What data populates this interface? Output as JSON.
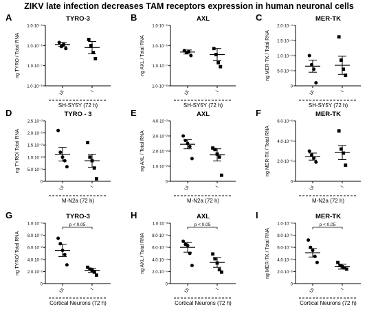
{
  "figure_title": "ZIKV late infection decreases TAM receptors expression in human neuronal cells",
  "chart_data": [
    {
      "type": "scatter",
      "panel_letter": "A",
      "title": "TYRO-3",
      "ylabel": "ng TYRO / Total RNA",
      "yscale": "log",
      "yticks": [
        "1.0·10⁻⁵",
        "1.0·10⁻⁶",
        "1.0·10⁻⁷",
        "1.0·10⁻⁸"
      ],
      "ylim": [
        -8,
        -5
      ],
      "categories": [
        "UI",
        "I"
      ],
      "group_label": "SH-SY5Y (72 h)",
      "series": [
        {
          "category": "UI",
          "points": [
            -5.85,
            -6.05,
            -5.95,
            -6.15
          ],
          "mean": -5.95,
          "err": 0.1
        },
        {
          "category": "I",
          "points": [
            -5.7,
            -6.0,
            -6.35,
            -6.65
          ],
          "mean": -6.1,
          "err": 0.3
        }
      ]
    },
    {
      "type": "scatter",
      "panel_letter": "B",
      "title": "AXL",
      "ylabel": "ng AXL / Total RNA",
      "yscale": "log",
      "yticks": [
        "1.0·10⁻⁵",
        "1.0·10⁻⁶",
        "1.0·10⁻⁷",
        "1.0·10⁻⁸"
      ],
      "ylim": [
        -8,
        -5
      ],
      "categories": [
        "UI",
        "I"
      ],
      "group_label": "SH-SY5Y (72 h)",
      "series": [
        {
          "category": "UI",
          "points": [
            -6.25,
            -6.35,
            -6.3,
            -6.5
          ],
          "mean": -6.32,
          "err": 0.1
        },
        {
          "category": "I",
          "points": [
            -6.15,
            -6.45,
            -6.85,
            -7.05
          ],
          "mean": -6.45,
          "err": 0.3
        }
      ]
    },
    {
      "type": "scatter",
      "panel_letter": "C",
      "title": "MER-TK",
      "ylabel": "ng MER-TK / Total RNA",
      "yticks": [
        "2.0·10⁻⁴",
        "1.5·10⁻⁴",
        "1.0·10⁻⁴",
        "5.0·10⁻⁵",
        "0"
      ],
      "ylim": [
        0,
        2.0
      ],
      "categories": [
        "UI",
        "I"
      ],
      "group_label": "SH-SY5Y (72 h)",
      "series": [
        {
          "category": "UI",
          "points": [
            1.0,
            0.7,
            0.55,
            0.1
          ],
          "mean": 0.65,
          "err": 0.2
        },
        {
          "category": "I",
          "points": [
            1.62,
            0.85,
            0.55,
            0.35
          ],
          "mean": 0.68,
          "err": 0.3
        }
      ]
    },
    {
      "type": "scatter",
      "panel_letter": "D",
      "title": "TYRO - 3",
      "ylabel": "ng TYRO/ Total RNA",
      "yticks": [
        "2.5·10⁻²",
        "2.0·10⁻²",
        "1.5·10⁻²",
        "1.0·10⁻²",
        "5.0·10⁻³",
        "0"
      ],
      "ylim": [
        0,
        2.5
      ],
      "categories": [
        "UI",
        "I"
      ],
      "group_label": "M-N2a (72 h)",
      "series": [
        {
          "category": "UI",
          "points": [
            2.1,
            1.2,
            1.0,
            0.85,
            0.6
          ],
          "mean": 1.12,
          "err": 0.28
        },
        {
          "category": "I",
          "points": [
            1.6,
            1.0,
            0.85,
            0.55,
            0.1
          ],
          "mean": 0.85,
          "err": 0.27
        }
      ]
    },
    {
      "type": "scatter",
      "panel_letter": "E",
      "title": "AXL",
      "ylabel": "ng AXL / Total RNA",
      "yticks": [
        "4.0·10⁻²",
        "3.0·10⁻²",
        "2.0·10⁻²",
        "1.0·10⁻²",
        "0"
      ],
      "ylim": [
        0,
        4.0
      ],
      "categories": [
        "UI",
        "I"
      ],
      "group_label": "M-N2a (72 h)",
      "series": [
        {
          "category": "UI",
          "points": [
            3.0,
            2.7,
            2.5,
            2.3,
            1.5
          ],
          "mean": 2.45,
          "err": 0.3
        },
        {
          "category": "I",
          "points": [
            2.2,
            2.1,
            1.8,
            1.6,
            0.4
          ],
          "mean": 1.75,
          "err": 0.4
        }
      ]
    },
    {
      "type": "scatter",
      "panel_letter": "F",
      "title": "MER-TK",
      "ylabel": "ng MER-TK / Total RNA",
      "yticks": [
        "6.0·10⁻⁶",
        "4.0·10⁻⁶",
        "2.0·10⁻⁶",
        "0"
      ],
      "ylim": [
        0,
        6.0
      ],
      "categories": [
        "UI",
        "I"
      ],
      "group_label": "M-N2a (72 h)",
      "series": [
        {
          "category": "UI",
          "points": [
            3.0,
            2.6,
            2.3,
            1.9
          ],
          "mean": 2.45,
          "err": 0.35
        },
        {
          "category": "I",
          "points": [
            5.0,
            3.2,
            2.8,
            1.6
          ],
          "mean": 2.85,
          "err": 0.7
        }
      ]
    },
    {
      "type": "scatter",
      "panel_letter": "G",
      "title": "TYRO-3",
      "ylabel": "ng TYRO/ Total RNA",
      "yticks": [
        "1.0·10⁻¹",
        "8.0·10⁻²",
        "6.0·10⁻²",
        "4.0·10⁻²",
        "2.0·10⁻²",
        "0"
      ],
      "ylim": [
        0,
        10
      ],
      "categories": [
        "UI",
        "I"
      ],
      "group_label": "Cortical Neurons (72 h)",
      "annotation": "p < 0.05",
      "series": [
        {
          "category": "UI",
          "points": [
            7.5,
            6.6,
            5.5,
            4.8,
            3.1
          ],
          "mean": 5.5,
          "err": 1.0
        },
        {
          "category": "I",
          "points": [
            2.7,
            2.4,
            2.2,
            1.9,
            1.4
          ],
          "mean": 2.2,
          "err": 0.35
        }
      ]
    },
    {
      "type": "scatter",
      "panel_letter": "H",
      "title": "AXL",
      "ylabel": "ng AXL / Total RNA",
      "yticks": [
        "1.0·10⁻³",
        "8.0·10⁻⁴",
        "6.0·10⁻⁴",
        "4.0·10⁻⁴",
        "2.0·10⁻⁴",
        "0"
      ],
      "ylim": [
        0,
        10
      ],
      "categories": [
        "UI",
        "I"
      ],
      "group_label": "Cortical Neurons (72 h)",
      "annotation": "p < 0.05",
      "series": [
        {
          "category": "UI",
          "points": [
            7.0,
            6.5,
            6.3,
            5.0,
            3.0
          ],
          "mean": 6.0,
          "err": 0.8
        },
        {
          "category": "I",
          "points": [
            4.9,
            4.1,
            3.4,
            2.3,
            1.9
          ],
          "mean": 3.5,
          "err": 0.8
        }
      ]
    },
    {
      "type": "scatter",
      "panel_letter": "I",
      "title": "MER-TK",
      "ylabel": "ng MER-TK / Total RNA",
      "yticks": [
        "1.0·10⁻⁵",
        "8.0·10⁻⁶",
        "6.0·10⁻⁶",
        "4.0·10⁻⁶",
        "2.0·10⁻⁶",
        "0"
      ],
      "ylim": [
        0,
        10
      ],
      "categories": [
        "UI",
        "I"
      ],
      "group_label": "Cortical Neurons (72 h)",
      "annotation": "p < 0.05",
      "series": [
        {
          "category": "UI",
          "points": [
            7.2,
            6.0,
            5.5,
            4.5,
            3.5
          ],
          "mean": 5.1,
          "err": 0.7
        },
        {
          "category": "I",
          "points": [
            3.5,
            3.0,
            2.8,
            2.6,
            2.4
          ],
          "mean": 2.8,
          "err": 0.4
        }
      ]
    }
  ]
}
